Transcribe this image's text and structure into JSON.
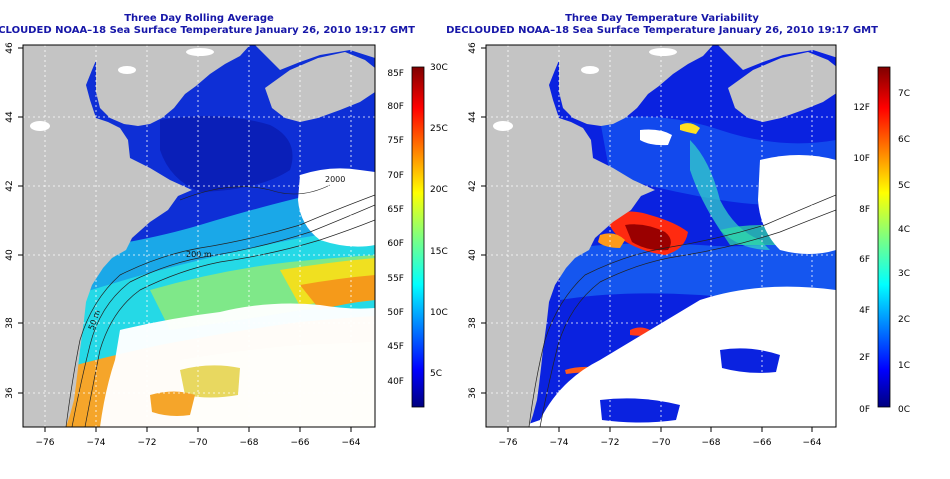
{
  "panels": [
    {
      "id": "rolling-average",
      "title": "Three Day Rolling Average",
      "subtitle": "DECLOUDED NOAA–18 Sea Surface Temperature January 26, 2010 19:17 GMT",
      "x_ticks": [
        "−76",
        "−74",
        "−72",
        "−70",
        "−68",
        "−66",
        "−64"
      ],
      "y_ticks": [
        "36",
        "38",
        "40",
        "42",
        "44",
        "46"
      ],
      "contour_labels": [
        "2000",
        "200 m",
        "50 m"
      ],
      "colorbar": {
        "left_labels": [
          "85F",
          "80F",
          "75F",
          "70F",
          "65F",
          "60F",
          "55F",
          "50F",
          "45F",
          "40F"
        ],
        "right_labels": [
          "30C",
          "25C",
          "20C",
          "15C",
          "10C",
          "5C"
        ]
      }
    },
    {
      "id": "variability",
      "title": "Three Day Temperature Variability",
      "subtitle": "DECLOUDED NOAA–18 Sea Surface Temperature January 26, 2010 19:17 GMT",
      "x_ticks": [
        "−76",
        "−74",
        "−72",
        "−70",
        "−68",
        "−66",
        "−64"
      ],
      "y_ticks": [
        "36",
        "38",
        "40",
        "42",
        "44",
        "46"
      ],
      "colorbar": {
        "left_labels": [
          "12F",
          "10F",
          "8F",
          "6F",
          "4F",
          "2F",
          "0F"
        ],
        "right_labels": [
          "7C",
          "6C",
          "5C",
          "4C",
          "3C",
          "2C",
          "1C",
          "0C"
        ]
      }
    }
  ],
  "colors": {
    "land": "#c4c4c4",
    "cloud": "#ffffff",
    "title": "#1616a8",
    "jet": [
      "#00007f",
      "#0000ff",
      "#007fff",
      "#00ffff",
      "#7fff7f",
      "#ffff00",
      "#ff7f00",
      "#ff0000",
      "#7f0000"
    ]
  }
}
